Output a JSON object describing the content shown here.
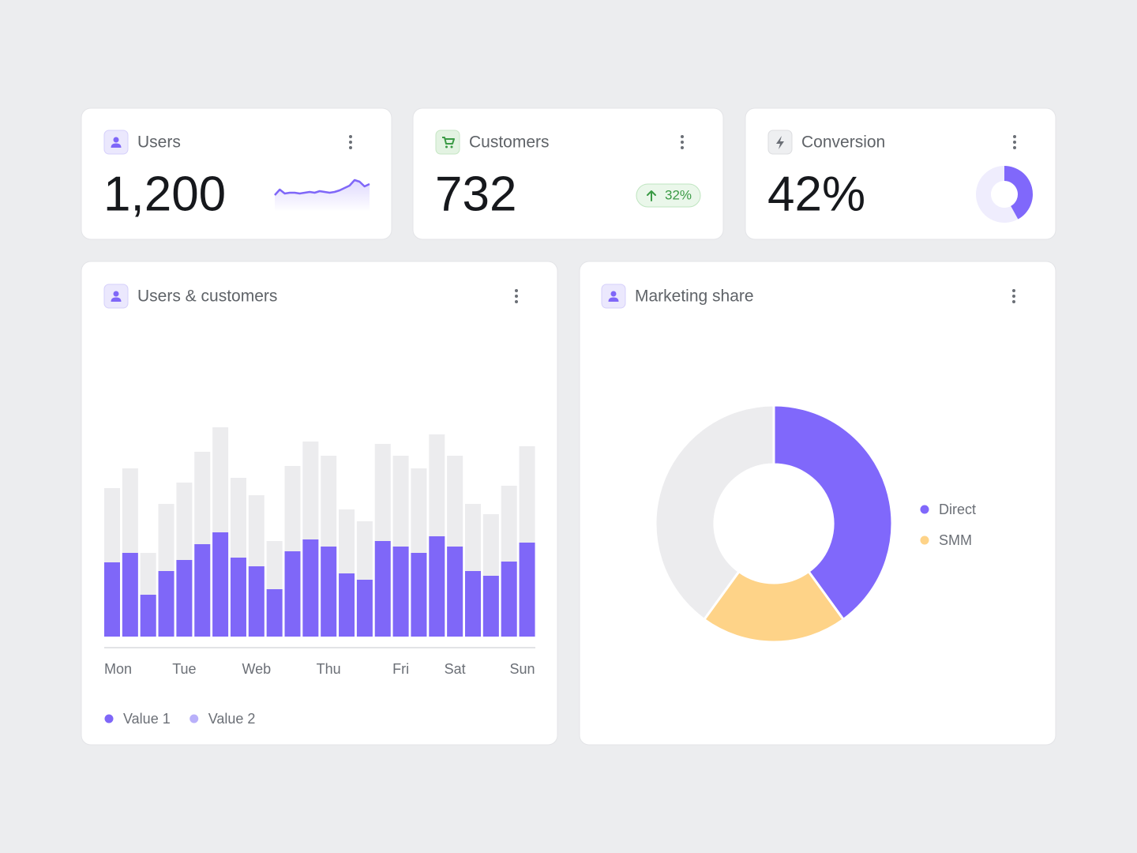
{
  "cards": [
    {
      "title": "Users",
      "value": 1200,
      "value_label": "1,200",
      "sparkline": {
        "type": "line",
        "color": "#7f67f8",
        "ylim": [
          0,
          25
        ],
        "values": [
          3,
          10,
          5,
          6,
          6,
          5,
          6,
          7,
          6,
          8,
          7,
          6,
          7,
          9,
          12,
          15,
          22,
          20,
          14,
          17
        ]
      }
    },
    {
      "title": "Customers",
      "value": 732,
      "change": 32,
      "change_label": "32%"
    },
    {
      "title": "Conversion",
      "value": 42,
      "value_label": "42%",
      "color": "#8068fb",
      "rest_color": "#efedfd"
    }
  ],
  "chart_data": [
    {
      "type": "bar",
      "title": "Users & customers",
      "categories": [
        "Mon",
        null,
        null,
        null,
        "Tue",
        null,
        null,
        null,
        "Web",
        null,
        null,
        null,
        "Thu",
        null,
        null,
        null,
        "Fri",
        null,
        null,
        "Sat",
        null,
        null,
        null,
        "Sun"
      ],
      "series": [
        {
          "name": "Value 1",
          "color": "#7f67f8",
          "values": [
            94,
            106,
            53,
            83,
            97,
            117,
            132,
            100,
            89,
            60,
            108,
            123,
            114,
            80,
            72,
            121,
            114,
            106,
            127,
            114,
            83,
            77,
            95,
            119
          ]
        },
        {
          "name": "Value 2",
          "color": "#ececee",
          "legend_color": "#b9b0fa",
          "values": [
            188,
            213,
            106,
            168,
            195,
            234,
            265,
            201,
            179,
            121,
            216,
            247,
            229,
            161,
            146,
            244,
            229,
            213,
            256,
            229,
            168,
            155,
            191,
            241
          ]
        }
      ],
      "ylim": [
        0,
        270
      ]
    },
    {
      "type": "pie",
      "title": "Marketing share",
      "categories": [
        "Direct",
        "SMM",
        null
      ],
      "values": [
        40,
        20,
        40
      ],
      "colors": [
        "#8068fb",
        "#fed388",
        "#ececee"
      ]
    }
  ]
}
